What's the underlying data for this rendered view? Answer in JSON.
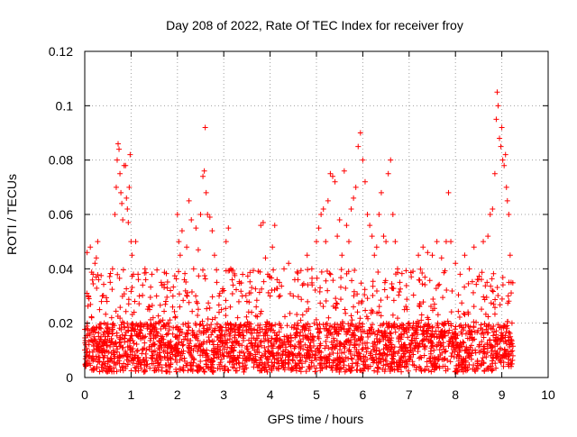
{
  "chart_data": {
    "type": "scatter",
    "title": "Day 208 of 2022, Rate Of TEC Index for receiver froy",
    "xlabel": "GPS time / hours",
    "ylabel": "ROTI / TECUs",
    "xlim": [
      0,
      10
    ],
    "ylim": [
      0,
      0.12
    ],
    "x_ticks": [
      {
        "value": 0,
        "label": "0"
      },
      {
        "value": 1,
        "label": "1"
      },
      {
        "value": 2,
        "label": "2"
      },
      {
        "value": 3,
        "label": "3"
      },
      {
        "value": 4,
        "label": "4"
      },
      {
        "value": 5,
        "label": "5"
      },
      {
        "value": 6,
        "label": "6"
      },
      {
        "value": 7,
        "label": "7"
      },
      {
        "value": 8,
        "label": "8"
      },
      {
        "value": 9,
        "label": "9"
      },
      {
        "value": 10,
        "label": "10"
      }
    ],
    "y_ticks": [
      {
        "value": 0,
        "label": "0"
      },
      {
        "value": 0.02,
        "label": "0.02"
      },
      {
        "value": 0.04,
        "label": "0.04"
      },
      {
        "value": 0.06,
        "label": "0.06"
      },
      {
        "value": 0.08,
        "label": "0.08"
      },
      {
        "value": 0.1,
        "label": "0.1"
      },
      {
        "value": 0.12,
        "label": "0.12"
      }
    ],
    "grid": true,
    "marker": "+",
    "series": [
      {
        "name": "ROTI",
        "color": "#ff0000",
        "points": [
          [
            0.02,
            0.012
          ],
          [
            0.05,
            0.046
          ],
          [
            0.08,
            0.03
          ],
          [
            0.1,
            0.008
          ],
          [
            0.12,
            0.048
          ],
          [
            0.15,
            0.022
          ],
          [
            0.18,
            0.038
          ],
          [
            0.2,
            0.015
          ],
          [
            0.22,
            0.042
          ],
          [
            0.25,
            0.044
          ],
          [
            0.28,
            0.05
          ],
          [
            0.3,
            0.036
          ],
          [
            0.32,
            0.025
          ],
          [
            0.35,
            0.018
          ],
          [
            0.38,
            0.03
          ],
          [
            0.4,
            0.01
          ],
          [
            0.42,
            0.02
          ],
          [
            0.45,
            0.014
          ],
          [
            0.48,
            0.028
          ],
          [
            0.5,
            0.006
          ],
          [
            0.52,
            0.016
          ],
          [
            0.55,
            0.035
          ],
          [
            0.58,
            0.022
          ],
          [
            0.6,
            0.04
          ],
          [
            0.62,
            0.012
          ],
          [
            0.65,
            0.06
          ],
          [
            0.68,
            0.07
          ],
          [
            0.7,
            0.08
          ],
          [
            0.72,
            0.086
          ],
          [
            0.74,
            0.084
          ],
          [
            0.76,
            0.075
          ],
          [
            0.78,
            0.068
          ],
          [
            0.8,
            0.064
          ],
          [
            0.82,
            0.058
          ],
          [
            0.85,
            0.078
          ],
          [
            0.88,
            0.078
          ],
          [
            0.9,
            0.066
          ],
          [
            0.92,
            0.062
          ],
          [
            0.94,
            0.057
          ],
          [
            0.96,
            0.07
          ],
          [
            0.98,
            0.082
          ],
          [
            1.0,
            0.05
          ],
          [
            1.02,
            0.045
          ],
          [
            1.05,
            0.038
          ],
          [
            1.08,
            0.028
          ],
          [
            1.1,
            0.05
          ],
          [
            1.12,
            0.016
          ],
          [
            1.15,
            0.038
          ],
          [
            1.18,
            0.03
          ],
          [
            1.2,
            0.02
          ],
          [
            1.25,
            0.034
          ],
          [
            1.3,
            0.04
          ],
          [
            1.35,
            0.018
          ],
          [
            1.4,
            0.025
          ],
          [
            1.45,
            0.038
          ],
          [
            1.5,
            0.012
          ],
          [
            1.55,
            0.03
          ],
          [
            1.6,
            0.02
          ],
          [
            1.65,
            0.035
          ],
          [
            1.7,
            0.014
          ],
          [
            1.75,
            0.028
          ],
          [
            1.8,
            0.02
          ],
          [
            1.85,
            0.032
          ],
          [
            1.9,
            0.016
          ],
          [
            1.95,
            0.022
          ],
          [
            2.0,
            0.06
          ],
          [
            2.03,
            0.05
          ],
          [
            2.06,
            0.045
          ],
          [
            2.1,
            0.054
          ],
          [
            2.15,
            0.036
          ],
          [
            2.2,
            0.048
          ],
          [
            2.25,
            0.065
          ],
          [
            2.3,
            0.058
          ],
          [
            2.35,
            0.04
          ],
          [
            2.4,
            0.055
          ],
          [
            2.45,
            0.047
          ],
          [
            2.5,
            0.06
          ],
          [
            2.55,
            0.074
          ],
          [
            2.58,
            0.076
          ],
          [
            2.6,
            0.092
          ],
          [
            2.62,
            0.068
          ],
          [
            2.65,
            0.06
          ],
          [
            2.7,
            0.059
          ],
          [
            2.75,
            0.054
          ],
          [
            2.8,
            0.045
          ],
          [
            2.85,
            0.035
          ],
          [
            2.9,
            0.03
          ],
          [
            2.95,
            0.025
          ],
          [
            3.0,
            0.032
          ],
          [
            3.05,
            0.05
          ],
          [
            3.1,
            0.055
          ],
          [
            3.15,
            0.04
          ],
          [
            3.2,
            0.034
          ],
          [
            3.3,
            0.022
          ],
          [
            3.4,
            0.03
          ],
          [
            3.5,
            0.028
          ],
          [
            3.6,
            0.024
          ],
          [
            3.7,
            0.026
          ],
          [
            3.8,
            0.056
          ],
          [
            3.85,
            0.057
          ],
          [
            3.9,
            0.044
          ],
          [
            3.95,
            0.038
          ],
          [
            4.0,
            0.03
          ],
          [
            4.05,
            0.048
          ],
          [
            4.1,
            0.056
          ],
          [
            4.15,
            0.036
          ],
          [
            4.2,
            0.035
          ],
          [
            4.3,
            0.04
          ],
          [
            4.4,
            0.042
          ],
          [
            4.5,
            0.03
          ],
          [
            4.6,
            0.036
          ],
          [
            4.7,
            0.034
          ],
          [
            4.8,
            0.045
          ],
          [
            4.9,
            0.04
          ],
          [
            5.0,
            0.05
          ],
          [
            5.05,
            0.055
          ],
          [
            5.1,
            0.06
          ],
          [
            5.15,
            0.062
          ],
          [
            5.2,
            0.05
          ],
          [
            5.25,
            0.065
          ],
          [
            5.3,
            0.075
          ],
          [
            5.35,
            0.074
          ],
          [
            5.4,
            0.072
          ],
          [
            5.45,
            0.052
          ],
          [
            5.5,
            0.058
          ],
          [
            5.55,
            0.045
          ],
          [
            5.6,
            0.076
          ],
          [
            5.65,
            0.056
          ],
          [
            5.7,
            0.05
          ],
          [
            5.75,
            0.062
          ],
          [
            5.8,
            0.066
          ],
          [
            5.85,
            0.07
          ],
          [
            5.9,
            0.085
          ],
          [
            5.95,
            0.09
          ],
          [
            6.0,
            0.08
          ],
          [
            6.05,
            0.072
          ],
          [
            6.1,
            0.06
          ],
          [
            6.15,
            0.056
          ],
          [
            6.2,
            0.052
          ],
          [
            6.25,
            0.045
          ],
          [
            6.3,
            0.048
          ],
          [
            6.35,
            0.06
          ],
          [
            6.4,
            0.068
          ],
          [
            6.45,
            0.052
          ],
          [
            6.5,
            0.05
          ],
          [
            6.55,
            0.075
          ],
          [
            6.6,
            0.08
          ],
          [
            6.65,
            0.06
          ],
          [
            6.7,
            0.05
          ],
          [
            6.75,
            0.04
          ],
          [
            6.8,
            0.035
          ],
          [
            6.9,
            0.025
          ],
          [
            7.0,
            0.02
          ],
          [
            7.1,
            0.018
          ],
          [
            7.2,
            0.045
          ],
          [
            7.3,
            0.048
          ],
          [
            7.4,
            0.046
          ],
          [
            7.5,
            0.045
          ],
          [
            7.6,
            0.05
          ],
          [
            7.7,
            0.044
          ],
          [
            7.8,
            0.05
          ],
          [
            7.85,
            0.068
          ],
          [
            7.9,
            0.05
          ],
          [
            8.0,
            0.042
          ],
          [
            8.1,
            0.038
          ],
          [
            8.2,
            0.045
          ],
          [
            8.3,
            0.04
          ],
          [
            8.4,
            0.048
          ],
          [
            8.5,
            0.036
          ],
          [
            8.6,
            0.05
          ],
          [
            8.7,
            0.052
          ],
          [
            8.75,
            0.06
          ],
          [
            8.8,
            0.062
          ],
          [
            8.85,
            0.075
          ],
          [
            8.88,
            0.095
          ],
          [
            8.9,
            0.105
          ],
          [
            8.92,
            0.1
          ],
          [
            8.95,
            0.088
          ],
          [
            8.98,
            0.085
          ],
          [
            9.0,
            0.092
          ],
          [
            9.02,
            0.08
          ],
          [
            9.05,
            0.078
          ],
          [
            9.08,
            0.082
          ],
          [
            9.1,
            0.07
          ],
          [
            9.12,
            0.065
          ],
          [
            9.15,
            0.06
          ],
          [
            9.18,
            0.045
          ],
          [
            9.2,
            0.035
          ],
          [
            9.22,
            0.02
          ],
          [
            9.24,
            0.008
          ]
        ]
      }
    ],
    "dense_band": {
      "description_values": {
        "x_start": 0.0,
        "x_end": 9.25,
        "y_floor": 0.002,
        "y_ceiling_low": 0.02,
        "y_ceiling_high": 0.04
      }
    }
  }
}
